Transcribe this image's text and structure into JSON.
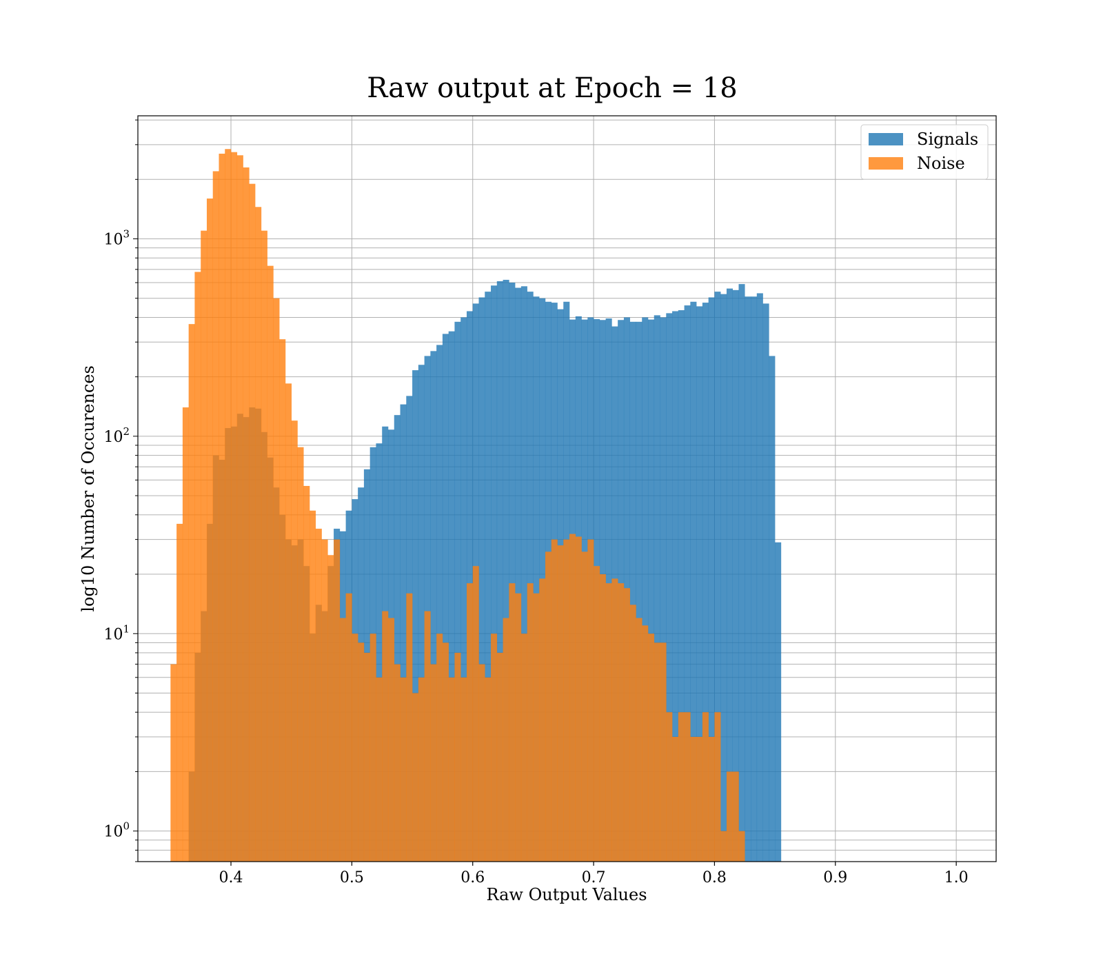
{
  "chart_data": {
    "type": "bar",
    "title": "Raw output at Epoch = 18",
    "xlabel": "Raw Output Values",
    "ylabel": "log10 Number of Occurences",
    "yscale": "log10",
    "xlim": [
      0.323,
      1.033
    ],
    "ylim": [
      0.7,
      4200
    ],
    "grid": true,
    "legend_position": "top-right",
    "xticks": [
      {
        "value": 0.4,
        "label": "0.4"
      },
      {
        "value": 0.5,
        "label": "0.5"
      },
      {
        "value": 0.6,
        "label": "0.6"
      },
      {
        "value": 0.7,
        "label": "0.7"
      },
      {
        "value": 0.8,
        "label": "0.8"
      },
      {
        "value": 0.9,
        "label": "0.9"
      },
      {
        "value": 1.0,
        "label": "1.0"
      }
    ],
    "yticks": [
      {
        "value": 1,
        "base": "10",
        "exp": "0"
      },
      {
        "value": 10,
        "base": "10",
        "exp": "1"
      },
      {
        "value": 100,
        "base": "10",
        "exp": "2"
      },
      {
        "value": 1000,
        "base": "10",
        "exp": "3"
      }
    ],
    "bins": {
      "start": 0.35,
      "width": 0.005
    },
    "series": [
      {
        "name": "Signals",
        "color": "#1f77b4",
        "opacity": 0.8,
        "values": [
          0,
          0,
          0,
          2,
          8,
          13,
          36,
          80,
          76,
          110,
          112,
          130,
          125,
          140,
          138,
          105,
          78,
          55,
          40,
          30,
          28,
          30,
          22,
          10,
          14,
          13,
          22,
          34,
          33,
          42,
          48,
          55,
          68,
          88,
          92,
          112,
          108,
          128,
          145,
          160,
          216,
          230,
          255,
          270,
          290,
          330,
          340,
          380,
          400,
          430,
          470,
          505,
          540,
          580,
          610,
          620,
          600,
          565,
          575,
          540,
          510,
          500,
          480,
          475,
          440,
          480,
          390,
          405,
          390,
          400,
          392,
          388,
          395,
          360,
          388,
          400,
          380,
          380,
          400,
          390,
          410,
          400,
          420,
          430,
          435,
          460,
          480,
          455,
          475,
          505,
          540,
          525,
          560,
          550,
          590,
          510,
          510,
          530,
          470,
          255,
          29
        ]
      },
      {
        "name": "Noise",
        "color": "#ff7f0e",
        "opacity": 0.8,
        "values": [
          7,
          36,
          140,
          370,
          680,
          1100,
          1600,
          2200,
          2700,
          2850,
          2750,
          2650,
          2300,
          1900,
          1450,
          1100,
          730,
          500,
          310,
          185,
          120,
          88,
          56,
          42,
          34,
          30,
          25,
          30,
          12,
          16,
          10,
          9,
          8,
          10,
          6,
          13,
          12,
          7,
          6,
          16,
          5,
          6,
          13,
          7,
          10,
          9,
          6,
          8,
          6,
          18,
          22,
          7,
          6,
          10,
          8,
          12,
          18,
          16,
          10,
          18,
          16,
          19,
          26,
          30,
          28,
          30,
          32,
          31,
          26,
          30,
          22,
          20,
          18,
          19,
          18,
          17,
          14,
          12,
          11,
          10,
          9,
          9,
          4,
          3,
          4,
          4,
          3,
          3,
          4,
          3,
          4,
          1,
          2,
          2,
          1
        ]
      }
    ]
  }
}
